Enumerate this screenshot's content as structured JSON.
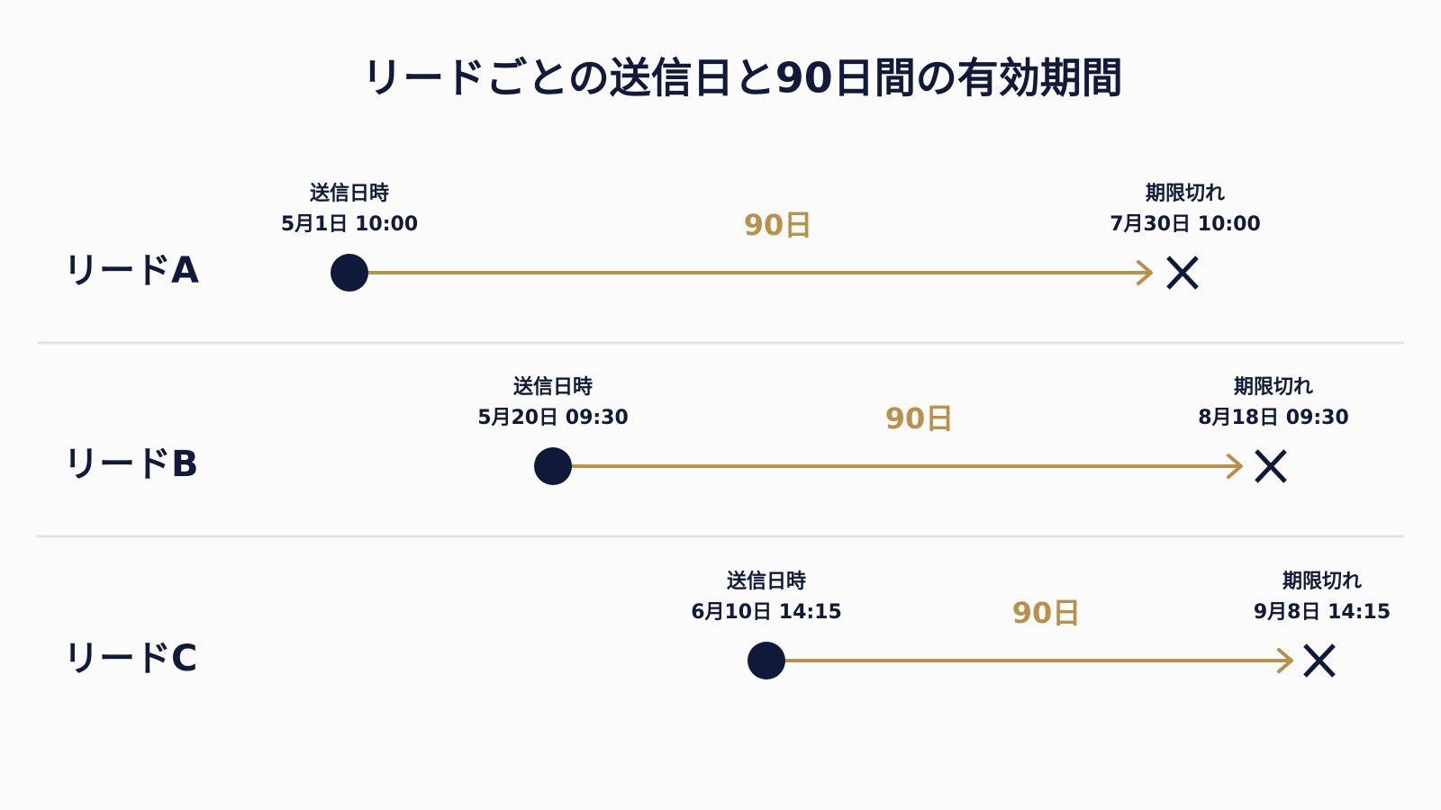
{
  "title": "リードごとの送信日と90日間の有効期間",
  "leads": [
    {
      "name": "リードA",
      "start_label": "送信日時",
      "start": "5月1日 10:00",
      "duration": "90日",
      "end_label": "期限切れ",
      "end": "7月30日 10:00"
    },
    {
      "name": "リードB",
      "start_label": "送信日時",
      "start": "5月20日 09:30",
      "duration": "90日",
      "end_label": "期限切れ",
      "end": "8月18日 09:30"
    },
    {
      "name": "リードC",
      "start_label": "送信日時",
      "start": "6月10日 14:15",
      "duration": "90日",
      "end_label": "期限切れ",
      "end": "9月8日 14:15"
    }
  ]
}
